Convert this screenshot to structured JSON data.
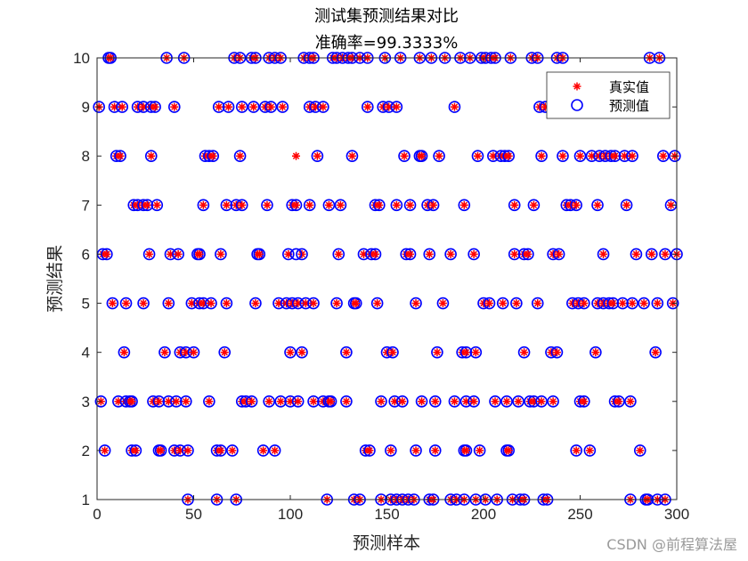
{
  "chart_data": {
    "type": "scatter",
    "title": "测试集预测结果对比",
    "subtitle": "准确率=99.3333%",
    "xlabel": "预测样本",
    "ylabel": "预测结果",
    "xlim": [
      0,
      300
    ],
    "ylim": [
      1,
      10
    ],
    "xticks": [
      "0",
      "50",
      "100",
      "150",
      "200",
      "250",
      "300"
    ],
    "yticks": [
      "1",
      "2",
      "3",
      "4",
      "5",
      "6",
      "7",
      "8",
      "9",
      "10"
    ],
    "grid": false,
    "legend_position": "top-right",
    "series": [
      {
        "name": "真实值",
        "marker": "asterisk",
        "color": "#ff0000"
      },
      {
        "name": "预测值",
        "marker": "circle",
        "color": "#0000ff"
      }
    ],
    "points": [
      [
        6,
        10
      ],
      [
        7,
        10
      ],
      [
        36,
        10
      ],
      [
        45,
        10
      ],
      [
        71,
        10
      ],
      [
        74,
        10
      ],
      [
        80,
        10
      ],
      [
        82,
        10
      ],
      [
        89,
        10
      ],
      [
        92,
        10
      ],
      [
        95,
        10
      ],
      [
        107,
        10
      ],
      [
        110,
        10
      ],
      [
        112,
        10
      ],
      [
        122,
        10
      ],
      [
        124,
        10
      ],
      [
        127,
        10
      ],
      [
        130,
        10
      ],
      [
        132,
        10
      ],
      [
        136,
        10
      ],
      [
        140,
        10
      ],
      [
        149,
        10
      ],
      [
        157,
        10
      ],
      [
        167,
        10
      ],
      [
        173,
        10
      ],
      [
        180,
        10
      ],
      [
        188,
        10
      ],
      [
        193,
        10
      ],
      [
        199,
        10
      ],
      [
        201,
        10
      ],
      [
        204,
        10
      ],
      [
        206,
        10
      ],
      [
        214,
        10
      ],
      [
        225,
        10
      ],
      [
        228,
        10
      ],
      [
        238,
        10
      ],
      [
        241,
        10
      ],
      [
        286,
        10
      ],
      [
        291,
        10
      ],
      [
        1,
        9
      ],
      [
        9,
        9
      ],
      [
        13,
        9
      ],
      [
        21,
        9
      ],
      [
        24,
        9
      ],
      [
        28,
        9
      ],
      [
        30,
        9
      ],
      [
        40,
        9
      ],
      [
        63,
        9
      ],
      [
        68,
        9
      ],
      [
        75,
        9
      ],
      [
        81,
        9
      ],
      [
        87,
        9
      ],
      [
        90,
        9
      ],
      [
        96,
        9
      ],
      [
        110,
        9
      ],
      [
        113,
        9
      ],
      [
        117,
        9
      ],
      [
        140,
        9
      ],
      [
        148,
        9
      ],
      [
        151,
        9
      ],
      [
        155,
        9
      ],
      [
        185,
        9
      ],
      [
        229,
        9
      ],
      [
        232,
        9
      ],
      [
        237,
        9
      ],
      [
        10,
        8
      ],
      [
        12,
        8
      ],
      [
        28,
        8
      ],
      [
        56,
        8
      ],
      [
        58,
        8
      ],
      [
        60,
        8
      ],
      [
        74,
        8
      ],
      [
        114,
        8
      ],
      [
        132,
        8
      ],
      [
        159,
        8
      ],
      [
        167,
        8
      ],
      [
        168,
        8
      ],
      [
        177,
        8
      ],
      [
        197,
        8
      ],
      [
        205,
        8
      ],
      [
        209,
        8
      ],
      [
        211,
        8
      ],
      [
        213,
        8
      ],
      [
        230,
        8
      ],
      [
        241,
        8
      ],
      [
        250,
        8
      ],
      [
        256,
        8
      ],
      [
        260,
        8
      ],
      [
        263,
        8
      ],
      [
        266,
        8
      ],
      [
        268,
        8
      ],
      [
        273,
        8
      ],
      [
        277,
        8
      ],
      [
        293,
        8
      ],
      [
        299,
        8
      ],
      [
        19,
        7
      ],
      [
        21,
        7
      ],
      [
        24,
        7
      ],
      [
        26,
        7
      ],
      [
        31,
        7
      ],
      [
        55,
        7
      ],
      [
        67,
        7
      ],
      [
        72,
        7
      ],
      [
        75,
        7
      ],
      [
        88,
        7
      ],
      [
        101,
        7
      ],
      [
        103,
        7
      ],
      [
        110,
        7
      ],
      [
        120,
        7
      ],
      [
        126,
        7
      ],
      [
        144,
        7
      ],
      [
        146,
        7
      ],
      [
        155,
        7
      ],
      [
        162,
        7
      ],
      [
        171,
        7
      ],
      [
        174,
        7
      ],
      [
        190,
        7
      ],
      [
        216,
        7
      ],
      [
        226,
        7
      ],
      [
        243,
        7
      ],
      [
        245,
        7
      ],
      [
        248,
        7
      ],
      [
        259,
        7
      ],
      [
        274,
        7
      ],
      [
        297,
        7
      ],
      [
        3,
        6
      ],
      [
        5,
        6
      ],
      [
        27,
        6
      ],
      [
        38,
        6
      ],
      [
        42,
        6
      ],
      [
        52,
        6
      ],
      [
        53,
        6
      ],
      [
        64,
        6
      ],
      [
        83,
        6
      ],
      [
        84,
        6
      ],
      [
        99,
        6
      ],
      [
        106,
        6
      ],
      [
        125,
        6
      ],
      [
        138,
        6
      ],
      [
        142,
        6
      ],
      [
        144,
        6
      ],
      [
        160,
        6
      ],
      [
        162,
        6
      ],
      [
        172,
        6
      ],
      [
        183,
        6
      ],
      [
        195,
        6
      ],
      [
        216,
        6
      ],
      [
        221,
        6
      ],
      [
        223,
        6
      ],
      [
        236,
        6
      ],
      [
        239,
        6
      ],
      [
        262,
        6
      ],
      [
        279,
        6
      ],
      [
        287,
        6
      ],
      [
        294,
        6
      ],
      [
        300,
        6
      ],
      [
        8,
        5
      ],
      [
        15,
        5
      ],
      [
        24,
        5
      ],
      [
        37,
        5
      ],
      [
        49,
        5
      ],
      [
        53,
        5
      ],
      [
        55,
        5
      ],
      [
        59,
        5
      ],
      [
        67,
        5
      ],
      [
        82,
        5
      ],
      [
        94,
        5
      ],
      [
        98,
        5
      ],
      [
        101,
        5
      ],
      [
        104,
        5
      ],
      [
        108,
        5
      ],
      [
        112,
        5
      ],
      [
        124,
        5
      ],
      [
        133,
        5
      ],
      [
        134,
        5
      ],
      [
        145,
        5
      ],
      [
        165,
        5
      ],
      [
        179,
        5
      ],
      [
        200,
        5
      ],
      [
        203,
        5
      ],
      [
        210,
        5
      ],
      [
        217,
        5
      ],
      [
        228,
        5
      ],
      [
        246,
        5
      ],
      [
        249,
        5
      ],
      [
        252,
        5
      ],
      [
        259,
        5
      ],
      [
        262,
        5
      ],
      [
        265,
        5
      ],
      [
        267,
        5
      ],
      [
        272,
        5
      ],
      [
        277,
        5
      ],
      [
        283,
        5
      ],
      [
        290,
        5
      ],
      [
        298,
        5
      ],
      [
        14,
        4
      ],
      [
        35,
        4
      ],
      [
        43,
        4
      ],
      [
        46,
        4
      ],
      [
        50,
        4
      ],
      [
        66,
        4
      ],
      [
        100,
        4
      ],
      [
        106,
        4
      ],
      [
        129,
        4
      ],
      [
        150,
        4
      ],
      [
        153,
        4
      ],
      [
        176,
        4
      ],
      [
        189,
        4
      ],
      [
        191,
        4
      ],
      [
        196,
        4
      ],
      [
        221,
        4
      ],
      [
        235,
        4
      ],
      [
        238,
        4
      ],
      [
        258,
        4
      ],
      [
        289,
        4
      ],
      [
        2,
        3
      ],
      [
        11,
        3
      ],
      [
        15,
        3
      ],
      [
        17,
        3
      ],
      [
        18,
        3
      ],
      [
        29,
        3
      ],
      [
        32,
        3
      ],
      [
        37,
        3
      ],
      [
        41,
        3
      ],
      [
        46,
        3
      ],
      [
        58,
        3
      ],
      [
        75,
        3
      ],
      [
        77,
        3
      ],
      [
        80,
        3
      ],
      [
        89,
        3
      ],
      [
        95,
        3
      ],
      [
        100,
        3
      ],
      [
        104,
        3
      ],
      [
        112,
        3
      ],
      [
        117,
        3
      ],
      [
        120,
        3
      ],
      [
        121,
        3
      ],
      [
        129,
        3
      ],
      [
        147,
        3
      ],
      [
        154,
        3
      ],
      [
        158,
        3
      ],
      [
        168,
        3
      ],
      [
        175,
        3
      ],
      [
        185,
        3
      ],
      [
        191,
        3
      ],
      [
        195,
        3
      ],
      [
        206,
        3
      ],
      [
        212,
        3
      ],
      [
        218,
        3
      ],
      [
        224,
        3
      ],
      [
        226,
        3
      ],
      [
        230,
        3
      ],
      [
        236,
        3
      ],
      [
        250,
        3
      ],
      [
        252,
        3
      ],
      [
        268,
        3
      ],
      [
        270,
        3
      ],
      [
        276,
        3
      ],
      [
        4,
        2
      ],
      [
        18,
        2
      ],
      [
        20,
        2
      ],
      [
        32,
        2
      ],
      [
        33,
        2
      ],
      [
        40,
        2
      ],
      [
        43,
        2
      ],
      [
        47,
        2
      ],
      [
        62,
        2
      ],
      [
        64,
        2
      ],
      [
        70,
        2
      ],
      [
        86,
        2
      ],
      [
        92,
        2
      ],
      [
        139,
        2
      ],
      [
        141,
        2
      ],
      [
        152,
        2
      ],
      [
        165,
        2
      ],
      [
        175,
        2
      ],
      [
        190,
        2
      ],
      [
        191,
        2
      ],
      [
        198,
        2
      ],
      [
        212,
        2
      ],
      [
        213,
        2
      ],
      [
        248,
        2
      ],
      [
        255,
        2
      ],
      [
        281,
        2
      ],
      [
        47,
        1
      ],
      [
        62,
        1
      ],
      [
        72,
        1
      ],
      [
        119,
        1
      ],
      [
        133,
        1
      ],
      [
        136,
        1
      ],
      [
        147,
        1
      ],
      [
        152,
        1
      ],
      [
        155,
        1
      ],
      [
        158,
        1
      ],
      [
        161,
        1
      ],
      [
        164,
        1
      ],
      [
        172,
        1
      ],
      [
        174,
        1
      ],
      [
        183,
        1
      ],
      [
        186,
        1
      ],
      [
        190,
        1
      ],
      [
        196,
        1
      ],
      [
        201,
        1
      ],
      [
        207,
        1
      ],
      [
        215,
        1
      ],
      [
        219,
        1
      ],
      [
        221,
        1
      ],
      [
        231,
        1
      ],
      [
        233,
        1
      ],
      [
        276,
        1
      ],
      [
        284,
        1
      ],
      [
        285,
        1
      ],
      [
        290,
        1
      ],
      [
        294,
        1
      ]
    ],
    "mismatch": {
      "x": 103,
      "true_value": 8,
      "predicted_value": 6
    }
  },
  "watermark": "CSDN @前程算法屋"
}
